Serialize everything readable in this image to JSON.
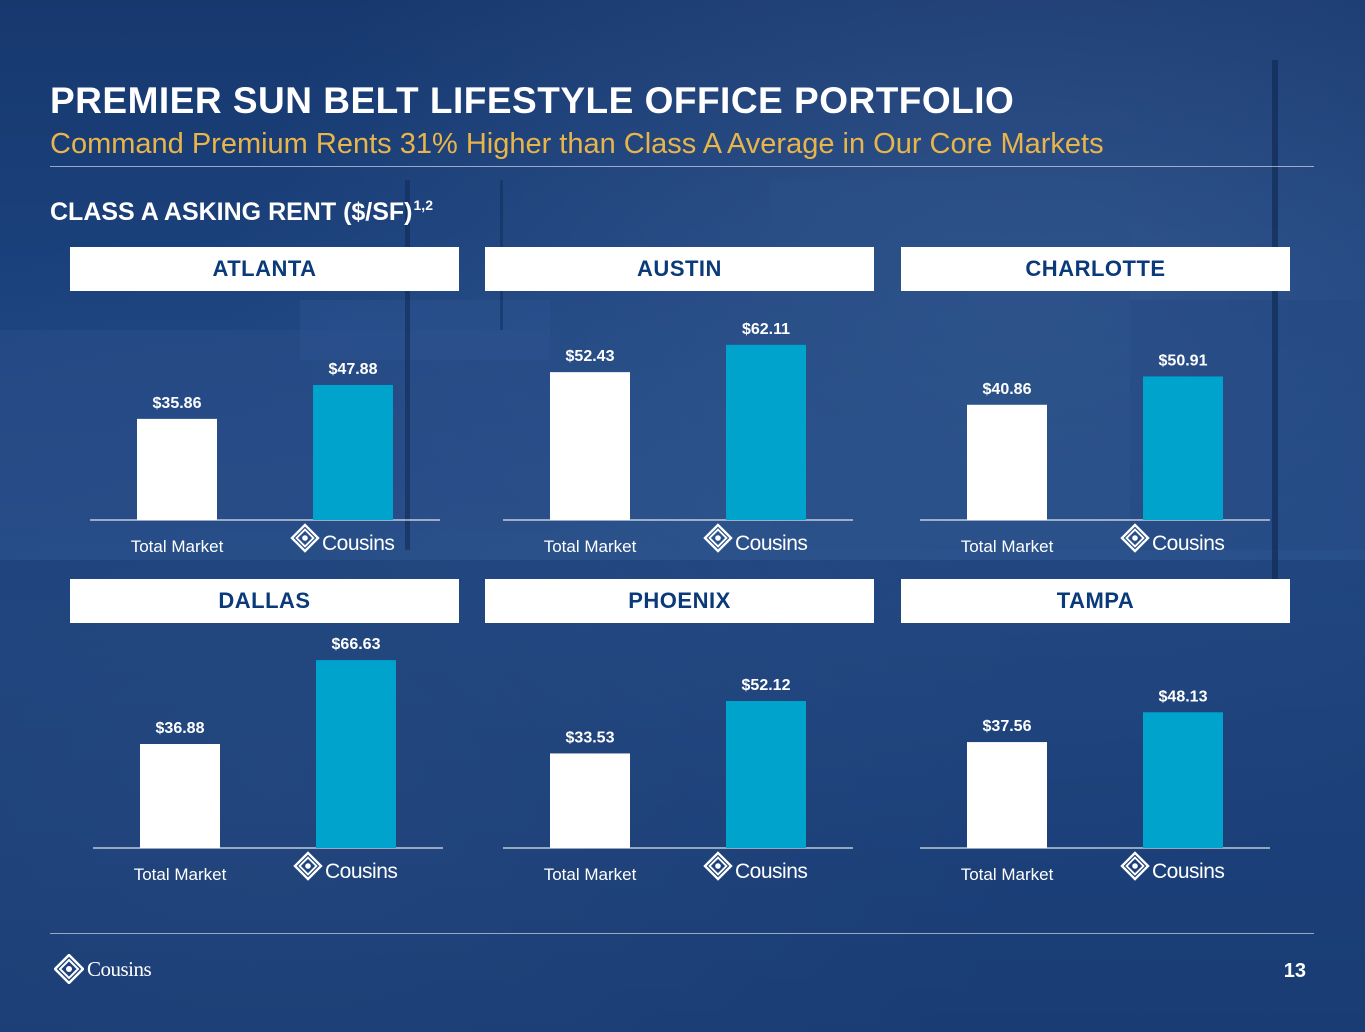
{
  "title": "PREMIER SUN BELT LIFESTYLE OFFICE PORTFOLIO",
  "subtitle": "Command Premium Rents 31% Higher than Class A Average in Our Core Markets",
  "section": {
    "label": "CLASS A ASKING RENT ($/SF)",
    "superscript": "1,2"
  },
  "colors": {
    "background": "#1c4480",
    "header_text": "#0b3a7a",
    "subtitle": "#e8b54a",
    "total_market_bar": "#ffffff",
    "cousins_bar": "#00a3cc"
  },
  "icons": {
    "logo": "cousins-logo-icon"
  },
  "brand_label": "Cousins",
  "page_number": "13",
  "chart_data": [
    {
      "type": "bar",
      "title": "ATLANTA",
      "categories": [
        "Total Market",
        "Cousins"
      ],
      "values": [
        35.86,
        47.88
      ],
      "labels": [
        "$35.86",
        "$47.88"
      ],
      "ylim": [
        0,
        70
      ]
    },
    {
      "type": "bar",
      "title": "AUSTIN",
      "categories": [
        "Total Market",
        "Cousins"
      ],
      "values": [
        52.43,
        62.11
      ],
      "labels": [
        "$52.43",
        "$62.11"
      ],
      "ylim": [
        0,
        70
      ]
    },
    {
      "type": "bar",
      "title": "CHARLOTTE",
      "categories": [
        "Total Market",
        "Cousins"
      ],
      "values": [
        40.86,
        50.91
      ],
      "labels": [
        "$40.86",
        "$50.91"
      ],
      "ylim": [
        0,
        70
      ]
    },
    {
      "type": "bar",
      "title": "DALLAS",
      "categories": [
        "Total Market",
        "Cousins"
      ],
      "values": [
        36.88,
        66.63
      ],
      "labels": [
        "$36.88",
        "$66.63"
      ],
      "ylim": [
        0,
        70
      ]
    },
    {
      "type": "bar",
      "title": "PHOENIX",
      "categories": [
        "Total Market",
        "Cousins"
      ],
      "values": [
        33.53,
        52.12
      ],
      "labels": [
        "$33.53",
        "$52.12"
      ],
      "ylim": [
        0,
        70
      ]
    },
    {
      "type": "bar",
      "title": "TAMPA",
      "categories": [
        "Total Market",
        "Cousins"
      ],
      "values": [
        37.56,
        48.13
      ],
      "labels": [
        "$37.56",
        "$48.13"
      ],
      "ylim": [
        0,
        70
      ]
    }
  ]
}
